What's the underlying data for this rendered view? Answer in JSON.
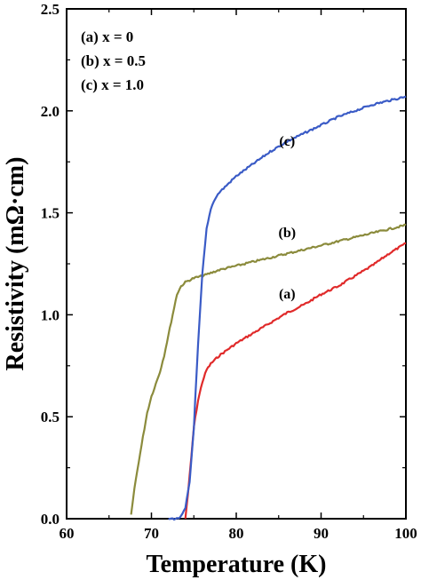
{
  "chart_data": {
    "type": "line",
    "xlabel": "Temperature (K)",
    "ylabel": "Resistivity (mΩ·cm)",
    "xlim": [
      60,
      100
    ],
    "ylim": [
      0,
      2.5
    ],
    "xticks": [
      60,
      70,
      80,
      90,
      100
    ],
    "xtick_labels": [
      "60",
      "70",
      "80",
      "90",
      "100"
    ],
    "yticks": [
      0,
      0.5,
      1.0,
      1.5,
      2.0,
      2.5
    ],
    "ytick_labels": [
      "0.0",
      "0.5",
      "1.0",
      "1.5",
      "2.0",
      "2.5"
    ],
    "legend": [
      "(a) x = 0",
      "(b) x = 0.5",
      "(c) x = 1.0"
    ],
    "legend_position": "top-left",
    "grid": false,
    "series": [
      {
        "name": "(a)",
        "color": "#e02a2a",
        "x": [
          74.0,
          74.3,
          74.7,
          75.0,
          75.5,
          76.0,
          76.5,
          77.0,
          78.0,
          80.0,
          82.0,
          84.0,
          86.0,
          88.0,
          90.0,
          92.0,
          94.0,
          96.0,
          98.0,
          100.0
        ],
        "y": [
          0.0,
          0.12,
          0.3,
          0.45,
          0.58,
          0.67,
          0.73,
          0.76,
          0.8,
          0.86,
          0.91,
          0.96,
          1.01,
          1.05,
          1.1,
          1.14,
          1.19,
          1.24,
          1.3,
          1.35
        ]
      },
      {
        "name": "(b)",
        "color": "#8b8b3c",
        "x": [
          67.6,
          68.0,
          68.5,
          69.0,
          69.5,
          70.0,
          70.5,
          71.0,
          71.5,
          72.0,
          72.5,
          73.0,
          73.5,
          74.0,
          75.0,
          76.0,
          78.0,
          80.0,
          83.0,
          86.0,
          89.0,
          92.0,
          95.0,
          98.0,
          100.0
        ],
        "y": [
          0.02,
          0.15,
          0.28,
          0.4,
          0.52,
          0.6,
          0.66,
          0.72,
          0.8,
          0.9,
          1.0,
          1.1,
          1.14,
          1.16,
          1.18,
          1.19,
          1.22,
          1.24,
          1.27,
          1.3,
          1.33,
          1.36,
          1.39,
          1.42,
          1.44
        ]
      },
      {
        "name": "(c)",
        "color": "#3a5bc6",
        "x": [
          72.0,
          73.0,
          73.5,
          74.0,
          74.5,
          75.0,
          75.5,
          76.0,
          76.5,
          77.0,
          77.5,
          78.0,
          79.0,
          80.0,
          82.0,
          84.0,
          86.0,
          88.0,
          90.0,
          92.0,
          94.0,
          96.0,
          98.0,
          100.0
        ],
        "y": [
          0.0,
          0.0,
          0.01,
          0.05,
          0.18,
          0.45,
          0.85,
          1.2,
          1.42,
          1.52,
          1.57,
          1.6,
          1.64,
          1.68,
          1.74,
          1.8,
          1.85,
          1.89,
          1.93,
          1.97,
          2.0,
          2.03,
          2.05,
          2.07
        ]
      }
    ],
    "annotations": [
      {
        "text": "(c)",
        "x": 86.0,
        "y": 1.83
      },
      {
        "text": "(b)",
        "x": 86.0,
        "y": 1.38
      },
      {
        "text": "(a)",
        "x": 86.0,
        "y": 1.08
      }
    ]
  }
}
